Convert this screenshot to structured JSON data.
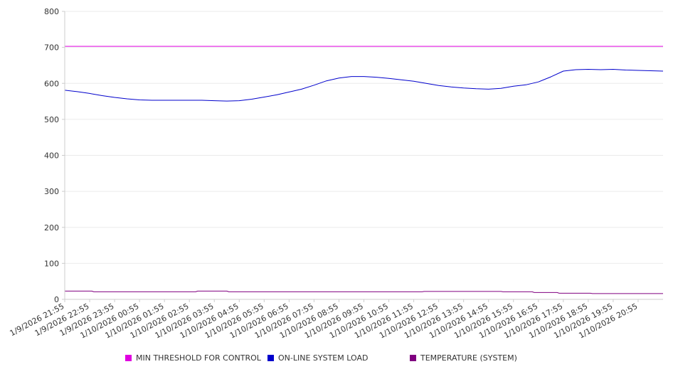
{
  "chart_data": {
    "type": "line",
    "ylim": [
      0,
      800
    ],
    "y_ticks": [
      0,
      100,
      200,
      300,
      400,
      500,
      600,
      700,
      800
    ],
    "y_tick_labels": [
      "0",
      "100",
      "200",
      "300",
      "400",
      "500",
      "600",
      "700",
      "800"
    ],
    "x_tick_labels": [
      "1/9/2026 21:55",
      "1/9/2026 22:55",
      "1/9/2026 23:55",
      "1/10/2026 00:55",
      "1/10/2026 01:55",
      "1/10/2026 02:55",
      "1/10/2026 03:55",
      "1/10/2026 04:55",
      "1/10/2026 05:55",
      "1/10/2026 06:55",
      "1/10/2026 07:55",
      "1/10/2026 08:55",
      "1/10/2026 09:55",
      "1/10/2026 10:55",
      "1/10/2026 11:55",
      "1/10/2026 12:55",
      "1/10/2026 13:55",
      "1/10/2026 14:55",
      "1/10/2026 15:55",
      "1/10/2026 16:55",
      "1/10/2026 17:55",
      "1/10/2026 18:55",
      "1/10/2026 19:55",
      "1/10/2026 20:55"
    ],
    "x_range": [
      "1/9/2026 21:55",
      "1/10/2026 21:55"
    ],
    "grid": true,
    "legend_position": "bottom",
    "series": [
      {
        "name": "MIN THRESHOLD FOR CONTROL",
        "color": "#e000e0",
        "x": [
          "1/9/2026 21:55",
          "1/10/2026 21:55"
        ],
        "values": [
          703,
          703
        ]
      },
      {
        "name": "ON-LINE SYSTEM LOAD",
        "color": "#0000cc",
        "x": [
          "1/9/2026 21:55",
          "1/9/2026 22:25",
          "1/9/2026 22:55",
          "1/9/2026 23:25",
          "1/9/2026 23:55",
          "1/10/2026 00:25",
          "1/10/2026 00:55",
          "1/10/2026 01:25",
          "1/10/2026 01:55",
          "1/10/2026 02:25",
          "1/10/2026 02:55",
          "1/10/2026 03:25",
          "1/10/2026 03:55",
          "1/10/2026 04:25",
          "1/10/2026 04:55",
          "1/10/2026 05:25",
          "1/10/2026 05:55",
          "1/10/2026 06:25",
          "1/10/2026 06:55",
          "1/10/2026 07:25",
          "1/10/2026 07:55",
          "1/10/2026 08:25",
          "1/10/2026 08:55",
          "1/10/2026 09:25",
          "1/10/2026 09:55",
          "1/10/2026 10:25",
          "1/10/2026 10:55",
          "1/10/2026 11:25",
          "1/10/2026 11:55",
          "1/10/2026 12:25",
          "1/10/2026 12:55",
          "1/10/2026 13:25",
          "1/10/2026 13:55",
          "1/10/2026 14:25",
          "1/10/2026 14:55",
          "1/10/2026 15:25",
          "1/10/2026 15:55",
          "1/10/2026 16:25",
          "1/10/2026 16:55",
          "1/10/2026 17:25",
          "1/10/2026 17:55",
          "1/10/2026 18:25",
          "1/10/2026 18:55",
          "1/10/2026 19:25",
          "1/10/2026 19:55",
          "1/10/2026 20:25",
          "1/10/2026 20:55",
          "1/10/2026 21:25",
          "1/10/2026 21:55"
        ],
        "values": [
          581,
          577,
          572,
          566,
          561,
          557,
          554,
          553,
          553,
          553,
          553,
          553,
          552,
          551,
          552,
          556,
          562,
          568,
          576,
          584,
          595,
          607,
          615,
          619,
          619,
          617,
          614,
          610,
          606,
          600,
          594,
          590,
          587,
          585,
          584,
          586,
          592,
          596,
          604,
          618,
          634,
          638,
          639,
          638,
          639,
          637,
          636,
          635,
          634
        ]
      },
      {
        "name": "TEMPERATURE (SYSTEM)",
        "color": "#800080",
        "x": [
          "1/9/2026 21:55",
          "1/9/2026 23:00",
          "1/9/2026 23:05",
          "1/10/2026 03:10",
          "1/10/2026 03:15",
          "1/10/2026 04:25",
          "1/10/2026 04:30",
          "1/10/2026 11:25",
          "1/10/2026 11:30",
          "1/10/2026 12:15",
          "1/10/2026 12:20",
          "1/10/2026 15:25",
          "1/10/2026 15:30",
          "1/10/2026 16:40",
          "1/10/2026 16:45",
          "1/10/2026 17:40",
          "1/10/2026 17:45",
          "1/10/2026 19:00",
          "1/10/2026 19:05",
          "1/10/2026 21:55"
        ],
        "values": [
          23,
          23,
          21,
          21,
          23,
          23,
          21,
          21,
          21,
          21,
          22,
          22,
          21,
          21,
          19,
          19,
          17,
          17,
          16,
          16
        ]
      }
    ]
  }
}
